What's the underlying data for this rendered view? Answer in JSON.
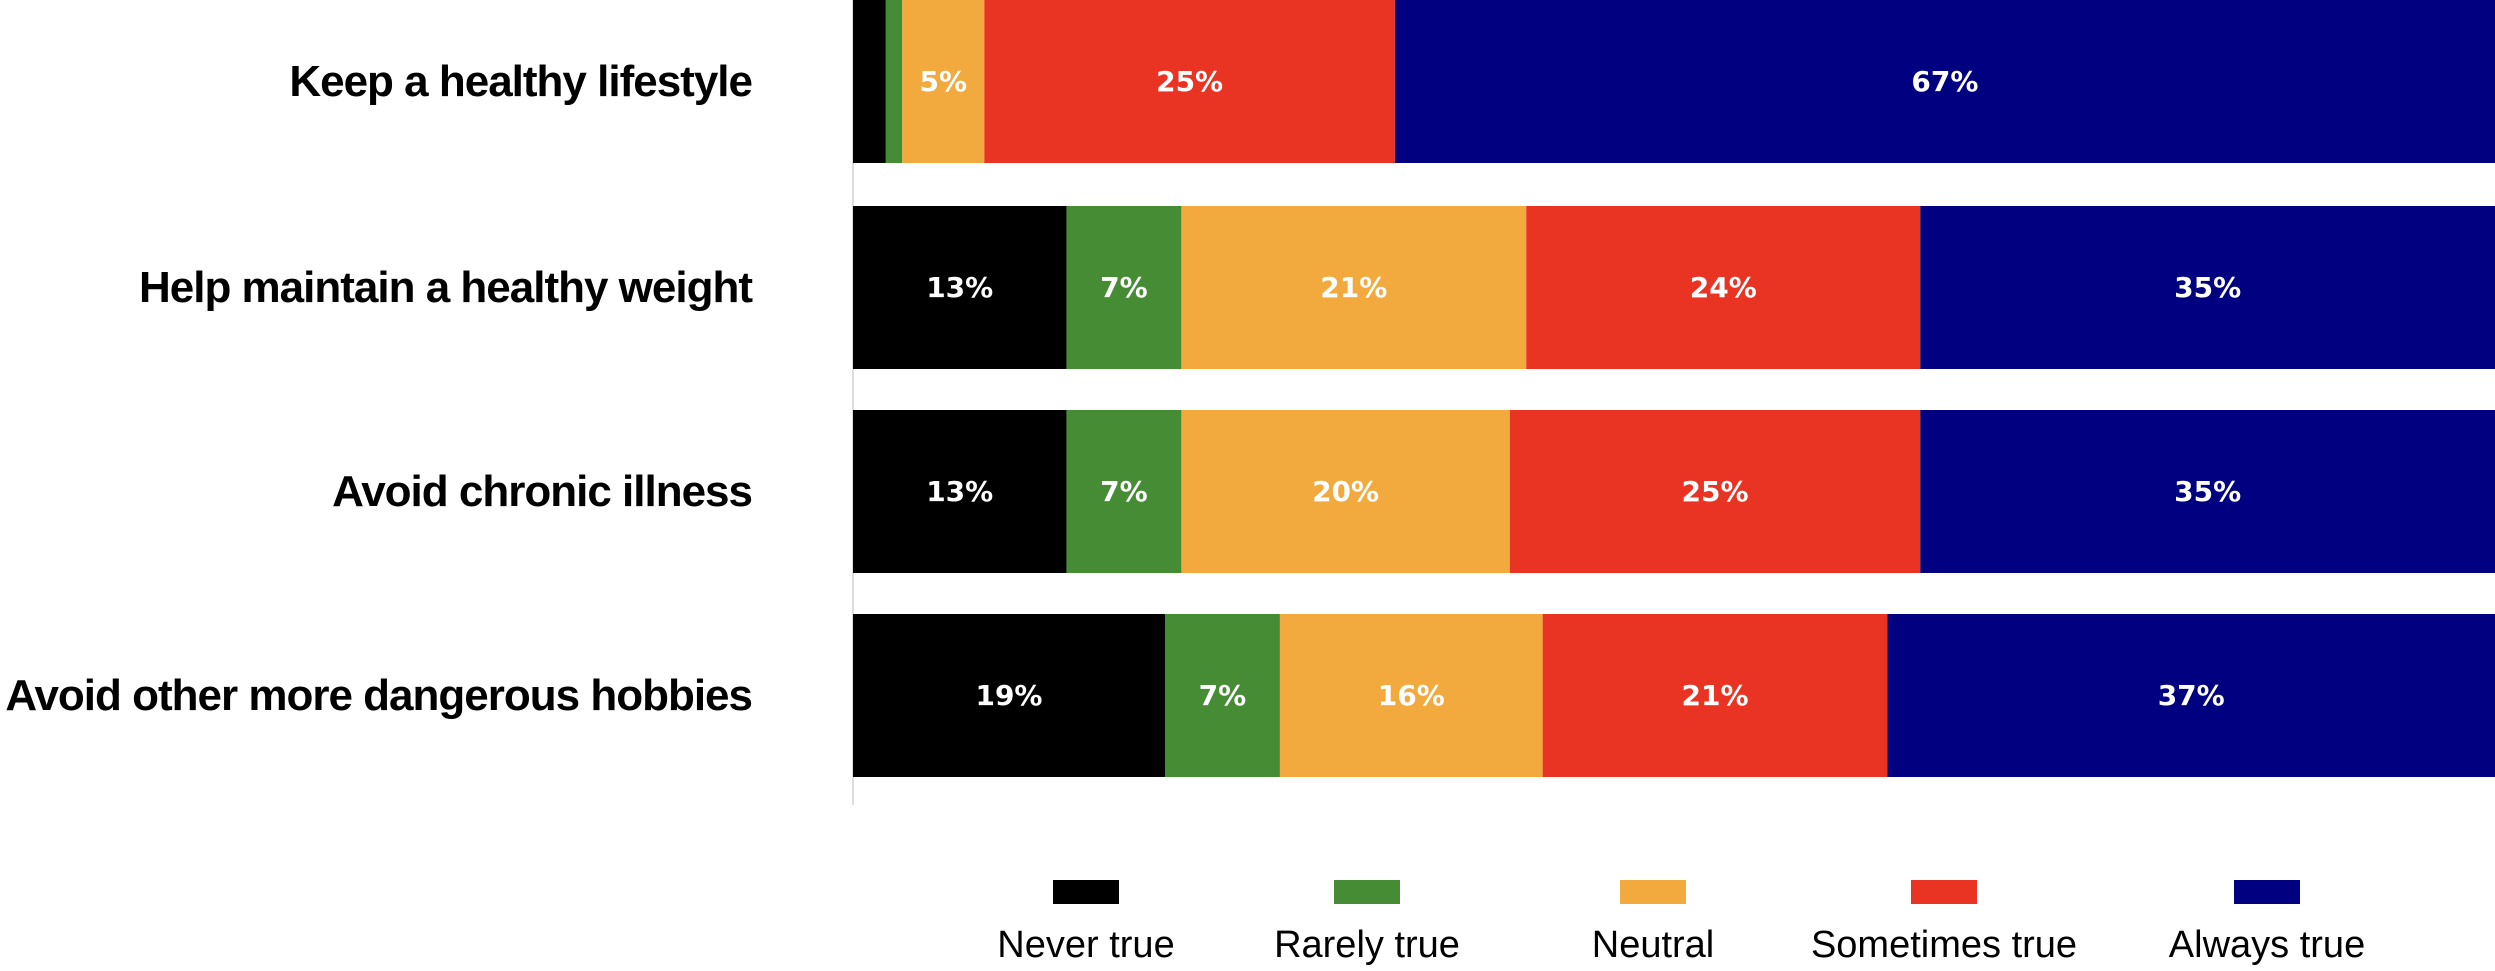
{
  "chart_data": {
    "type": "bar",
    "orientation": "horizontal",
    "stacked": true,
    "percent_scale": true,
    "title": "",
    "xlabel": "",
    "ylabel": "",
    "grid": false,
    "legend_position": "bottom",
    "categories": [
      "Keep a healthy lifestyle",
      "Help maintain a healthy weight",
      "Avoid chronic illness",
      "Avoid other more dangerous hobbies"
    ],
    "series": [
      {
        "name": "Never true",
        "color": "#000000",
        "values": [
          2,
          13,
          13,
          19
        ],
        "labels": [
          "",
          "13%",
          "13%",
          "19%"
        ]
      },
      {
        "name": "Rarely true",
        "color": "#468C35",
        "values": [
          1,
          7,
          7,
          7
        ],
        "labels": [
          "",
          "7%",
          "7%",
          "7%"
        ]
      },
      {
        "name": "Neutral",
        "color": "#F2AA3F",
        "values": [
          5,
          21,
          20,
          16
        ],
        "labels": [
          "5%",
          "21%",
          "20%",
          "16%"
        ]
      },
      {
        "name": "Sometimes true",
        "color": "#E93424",
        "values": [
          25,
          24,
          25,
          21
        ],
        "labels": [
          "25%",
          "24%",
          "25%",
          "21%"
        ]
      },
      {
        "name": "Always true",
        "color": "#010080",
        "values": [
          67,
          35,
          35,
          37
        ],
        "labels": [
          "67%",
          "35%",
          "35%",
          "37%"
        ]
      }
    ]
  }
}
